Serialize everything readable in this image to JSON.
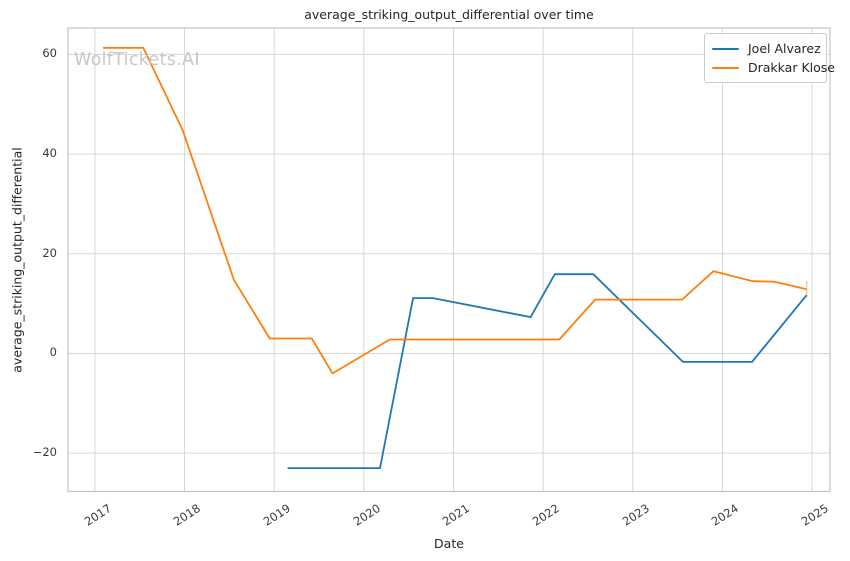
{
  "watermark": {
    "text": "WolfTickets.AI",
    "color": "#c8c8c8"
  },
  "axes_style": {
    "background": "#ffffff",
    "grid_color": "#d6d6d6",
    "spine_color": "#c3c3c3",
    "tick_label_color": "#3b3b3b",
    "text_color": "#262626"
  },
  "chart_data": {
    "type": "line",
    "title": "average_striking_output_differential over time",
    "xlabel": "Date",
    "ylabel": "average_striking_output_differential",
    "xlim": [
      2016.7,
      2025.2
    ],
    "ylim": [
      -27.7,
      65.3
    ],
    "x_ticks": [
      2017,
      2018,
      2019,
      2020,
      2021,
      2022,
      2023,
      2024,
      2025
    ],
    "y_ticks": [
      -20,
      0,
      20,
      40,
      60
    ],
    "grid": true,
    "legend_position": "upper right",
    "series": [
      {
        "name": "Joel Alvarez",
        "color": "#1f77b4",
        "points": [
          [
            2019.15,
            -23.0
          ],
          [
            2020.18,
            -23.0
          ],
          [
            2020.55,
            11.1
          ],
          [
            2020.77,
            11.1
          ],
          [
            2021.86,
            7.3
          ],
          [
            2022.13,
            15.9
          ],
          [
            2022.56,
            15.9
          ],
          [
            2023.56,
            -1.7
          ],
          [
            2024.33,
            -1.7
          ],
          [
            2024.94,
            11.7
          ]
        ],
        "end_tick": false
      },
      {
        "name": "Drakkar Klose",
        "color": "#ff7f0e",
        "points": [
          [
            2017.09,
            61.3
          ],
          [
            2017.54,
            61.3
          ],
          [
            2017.98,
            44.8
          ],
          [
            2018.55,
            14.8
          ],
          [
            2018.95,
            3.0
          ],
          [
            2019.42,
            3.0
          ],
          [
            2019.65,
            -4.0
          ],
          [
            2020.29,
            2.8
          ],
          [
            2022.18,
            2.8
          ],
          [
            2022.58,
            10.8
          ],
          [
            2023.55,
            10.8
          ],
          [
            2023.9,
            16.5
          ],
          [
            2024.34,
            14.5
          ],
          [
            2024.58,
            14.4
          ],
          [
            2024.94,
            12.9
          ]
        ],
        "end_tick": true
      }
    ]
  }
}
